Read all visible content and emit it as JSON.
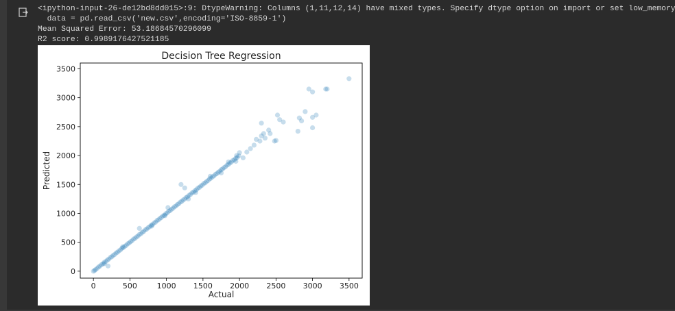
{
  "output": {
    "lines": [
      "<ipython-input-26-de12bd8dd015>:9: DtypeWarning: Columns (1,11,12,14) have mixed types. Specify dtype option on import or set low_memory=False.",
      "  data = pd.read_csv('new.csv',encoding='ISO-8859-1')",
      "Mean Squared Error: 53.18684570296099",
      "R2 score: 0.9989176427521185"
    ]
  },
  "icons": {
    "output_icon": "output-redirect-icon"
  },
  "chart_data": {
    "type": "scatter",
    "title": "Decision Tree Regression",
    "xlabel": "Actual",
    "ylabel": "Predicted",
    "xlim": [
      -180,
      3680
    ],
    "ylim": [
      -120,
      3600
    ],
    "x_ticks": [
      0,
      500,
      1000,
      1500,
      2000,
      2500,
      3000,
      3500
    ],
    "y_ticks": [
      0,
      500,
      1000,
      1500,
      2000,
      2500,
      3000,
      3500
    ],
    "grid": false,
    "marker_color": "#1f77b4",
    "marker_alpha": 0.25,
    "points": [
      [
        0,
        0
      ],
      [
        15,
        12
      ],
      [
        30,
        28
      ],
      [
        50,
        48
      ],
      [
        70,
        72
      ],
      [
        90,
        88
      ],
      [
        110,
        112
      ],
      [
        130,
        128
      ],
      [
        150,
        155
      ],
      [
        170,
        168
      ],
      [
        190,
        192
      ],
      [
        210,
        208
      ],
      [
        230,
        235
      ],
      [
        250,
        248
      ],
      [
        270,
        272
      ],
      [
        290,
        288
      ],
      [
        310,
        315
      ],
      [
        330,
        328
      ],
      [
        350,
        352
      ],
      [
        370,
        368
      ],
      [
        390,
        395
      ],
      [
        410,
        408
      ],
      [
        430,
        432
      ],
      [
        450,
        448
      ],
      [
        470,
        475
      ],
      [
        490,
        488
      ],
      [
        510,
        512
      ],
      [
        530,
        528
      ],
      [
        550,
        555
      ],
      [
        570,
        568
      ],
      [
        590,
        592
      ],
      [
        610,
        608
      ],
      [
        630,
        635
      ],
      [
        650,
        648
      ],
      [
        670,
        672
      ],
      [
        690,
        688
      ],
      [
        710,
        715
      ],
      [
        730,
        728
      ],
      [
        750,
        752
      ],
      [
        770,
        768
      ],
      [
        790,
        795
      ],
      [
        810,
        808
      ],
      [
        830,
        832
      ],
      [
        850,
        848
      ],
      [
        870,
        875
      ],
      [
        890,
        888
      ],
      [
        910,
        912
      ],
      [
        930,
        928
      ],
      [
        950,
        955
      ],
      [
        970,
        968
      ],
      [
        990,
        992
      ],
      [
        1010,
        1008
      ],
      [
        1030,
        1035
      ],
      [
        1050,
        1048
      ],
      [
        1070,
        1072
      ],
      [
        1090,
        1088
      ],
      [
        1110,
        1115
      ],
      [
        1130,
        1128
      ],
      [
        1150,
        1152
      ],
      [
        1170,
        1168
      ],
      [
        1190,
        1195
      ],
      [
        1210,
        1208
      ],
      [
        1230,
        1232
      ],
      [
        1250,
        1248
      ],
      [
        1270,
        1275
      ],
      [
        1290,
        1288
      ],
      [
        1310,
        1312
      ],
      [
        1330,
        1328
      ],
      [
        1350,
        1355
      ],
      [
        1370,
        1368
      ],
      [
        1390,
        1392
      ],
      [
        1410,
        1408
      ],
      [
        1430,
        1435
      ],
      [
        1450,
        1448
      ],
      [
        1470,
        1472
      ],
      [
        1490,
        1488
      ],
      [
        1510,
        1515
      ],
      [
        1530,
        1528
      ],
      [
        1550,
        1552
      ],
      [
        1570,
        1568
      ],
      [
        1590,
        1595
      ],
      [
        1610,
        1608
      ],
      [
        1630,
        1632
      ],
      [
        1650,
        1648
      ],
      [
        1670,
        1675
      ],
      [
        1690,
        1688
      ],
      [
        1710,
        1712
      ],
      [
        1730,
        1728
      ],
      [
        1750,
        1755
      ],
      [
        1770,
        1768
      ],
      [
        1790,
        1792
      ],
      [
        1810,
        1808
      ],
      [
        1830,
        1835
      ],
      [
        1850,
        1848
      ],
      [
        1870,
        1872
      ],
      [
        1890,
        1888
      ],
      [
        1910,
        1915
      ],
      [
        1930,
        1928
      ],
      [
        1950,
        1952
      ],
      [
        1970,
        1968
      ],
      [
        1990,
        1995
      ],
      [
        630,
        740
      ],
      [
        1200,
        1500
      ],
      [
        1250,
        1440
      ],
      [
        2000,
        2050
      ],
      [
        1960,
        2000
      ],
      [
        2050,
        1960
      ],
      [
        2100,
        2060
      ],
      [
        2150,
        2120
      ],
      [
        2200,
        2180
      ],
      [
        2230,
        2280
      ],
      [
        2280,
        2250
      ],
      [
        2300,
        2340
      ],
      [
        2330,
        2380
      ],
      [
        2350,
        2300
      ],
      [
        2300,
        2560
      ],
      [
        2400,
        2440
      ],
      [
        2420,
        2380
      ],
      [
        2480,
        2250
      ],
      [
        2500,
        2260
      ],
      [
        2520,
        2700
      ],
      [
        2550,
        2620
      ],
      [
        2600,
        2580
      ],
      [
        2800,
        2420
      ],
      [
        2820,
        2650
      ],
      [
        2850,
        2600
      ],
      [
        2900,
        2760
      ],
      [
        3000,
        2480
      ],
      [
        3000,
        2660
      ],
      [
        3050,
        2700
      ],
      [
        2950,
        3150
      ],
      [
        3000,
        3100
      ],
      [
        3180,
        3150
      ],
      [
        3200,
        3150
      ],
      [
        3500,
        3330
      ],
      [
        980,
        960
      ],
      [
        1020,
        1100
      ],
      [
        1400,
        1360
      ],
      [
        1600,
        1640
      ],
      [
        1850,
        1890
      ],
      [
        1300,
        1250
      ],
      [
        800,
        780
      ],
      [
        400,
        420
      ],
      [
        200,
        90
      ],
      [
        150,
        130
      ],
      [
        1750,
        1700
      ],
      [
        1950,
        1900
      ]
    ]
  }
}
